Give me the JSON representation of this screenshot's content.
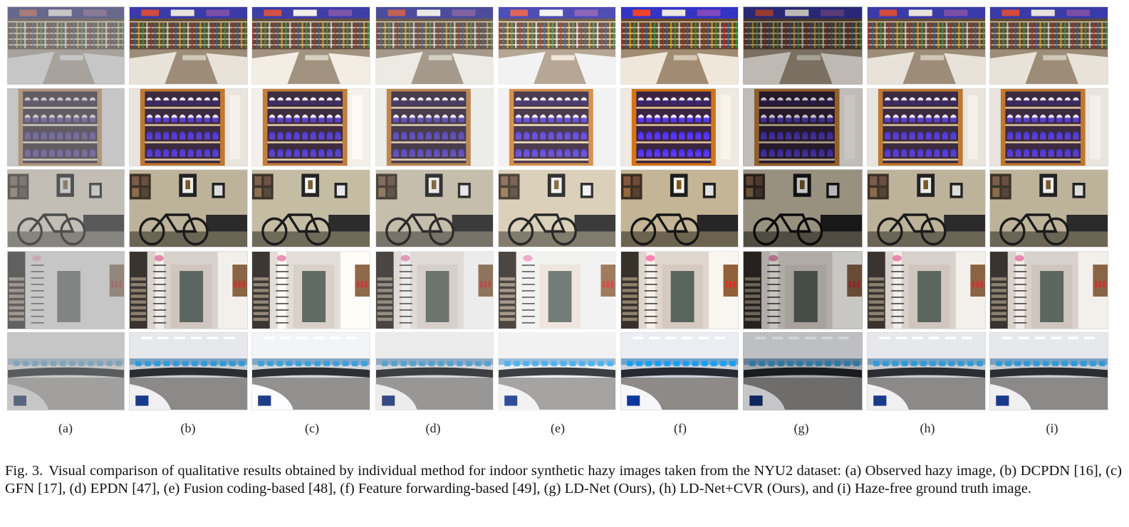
{
  "figure": {
    "columns": [
      {
        "label": "(a)",
        "variant": "hazy"
      },
      {
        "label": "(b)",
        "variant": "clear"
      },
      {
        "label": "(c)",
        "variant": "clear-soft"
      },
      {
        "label": "(d)",
        "variant": "slight-haze"
      },
      {
        "label": "(e)",
        "variant": "bright"
      },
      {
        "label": "(f)",
        "variant": "saturated"
      },
      {
        "label": "(g)",
        "variant": "dark"
      },
      {
        "label": "(h)",
        "variant": "clear"
      },
      {
        "label": "(i)",
        "variant": "clear"
      }
    ],
    "rows": [
      {
        "scene": "bookstore"
      },
      {
        "scene": "shelves"
      },
      {
        "scene": "wall-bicycle"
      },
      {
        "scene": "hallway-door"
      },
      {
        "scene": "computer-lab"
      }
    ]
  },
  "caption": {
    "fig_number": "Fig. 3.",
    "text": "Visual comparison of qualitative results obtained by individual method for indoor synthetic hazy images taken from the NYU2 dataset: (a) Observed hazy image, (b) DCPDN [16], (c) GFN [17], (d) EPDN [47], (e) Fusion coding-based [48], (f) Feature forwarding-based [49], (g) LD-Net (Ours), (h) LD-Net+CVR (Ours), and (i) Haze-free ground truth image."
  }
}
